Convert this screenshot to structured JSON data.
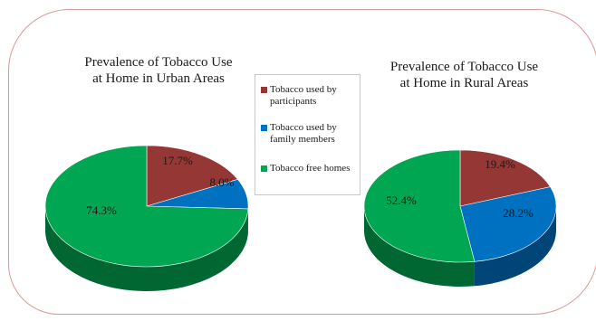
{
  "chart_data": [
    {
      "type": "pie",
      "title": "Prevalence of Tobacco Use\nat Home in Urban Areas",
      "categories": [
        "Tobacco used by participants",
        "Tobacco used by family members",
        "Tobacco free homes"
      ],
      "values": [
        17.7,
        8.0,
        74.3
      ],
      "labels": [
        "17.7%",
        "8.0%",
        "74.3%"
      ],
      "colors": [
        "#953735",
        "#0070c0",
        "#00a651"
      ]
    },
    {
      "type": "pie",
      "title": "Prevalence of Tobacco Use\nat Home in  Rural Areas",
      "categories": [
        "Tobacco used by participants",
        "Tobacco used by family members",
        "Tobacco free homes"
      ],
      "values": [
        19.4,
        28.2,
        52.4
      ],
      "labels": [
        "19.4%",
        "28.2%",
        "52.4%"
      ],
      "colors": [
        "#953735",
        "#0070c0",
        "#00a651"
      ]
    }
  ],
  "legend": {
    "placement": "center",
    "items": [
      {
        "label": "Tobacco used by participants",
        "color": "#953735"
      },
      {
        "label": "Tobacco used by family members",
        "color": "#0070c0"
      },
      {
        "label": "Tobacco free homes",
        "color": "#00a651"
      }
    ]
  }
}
